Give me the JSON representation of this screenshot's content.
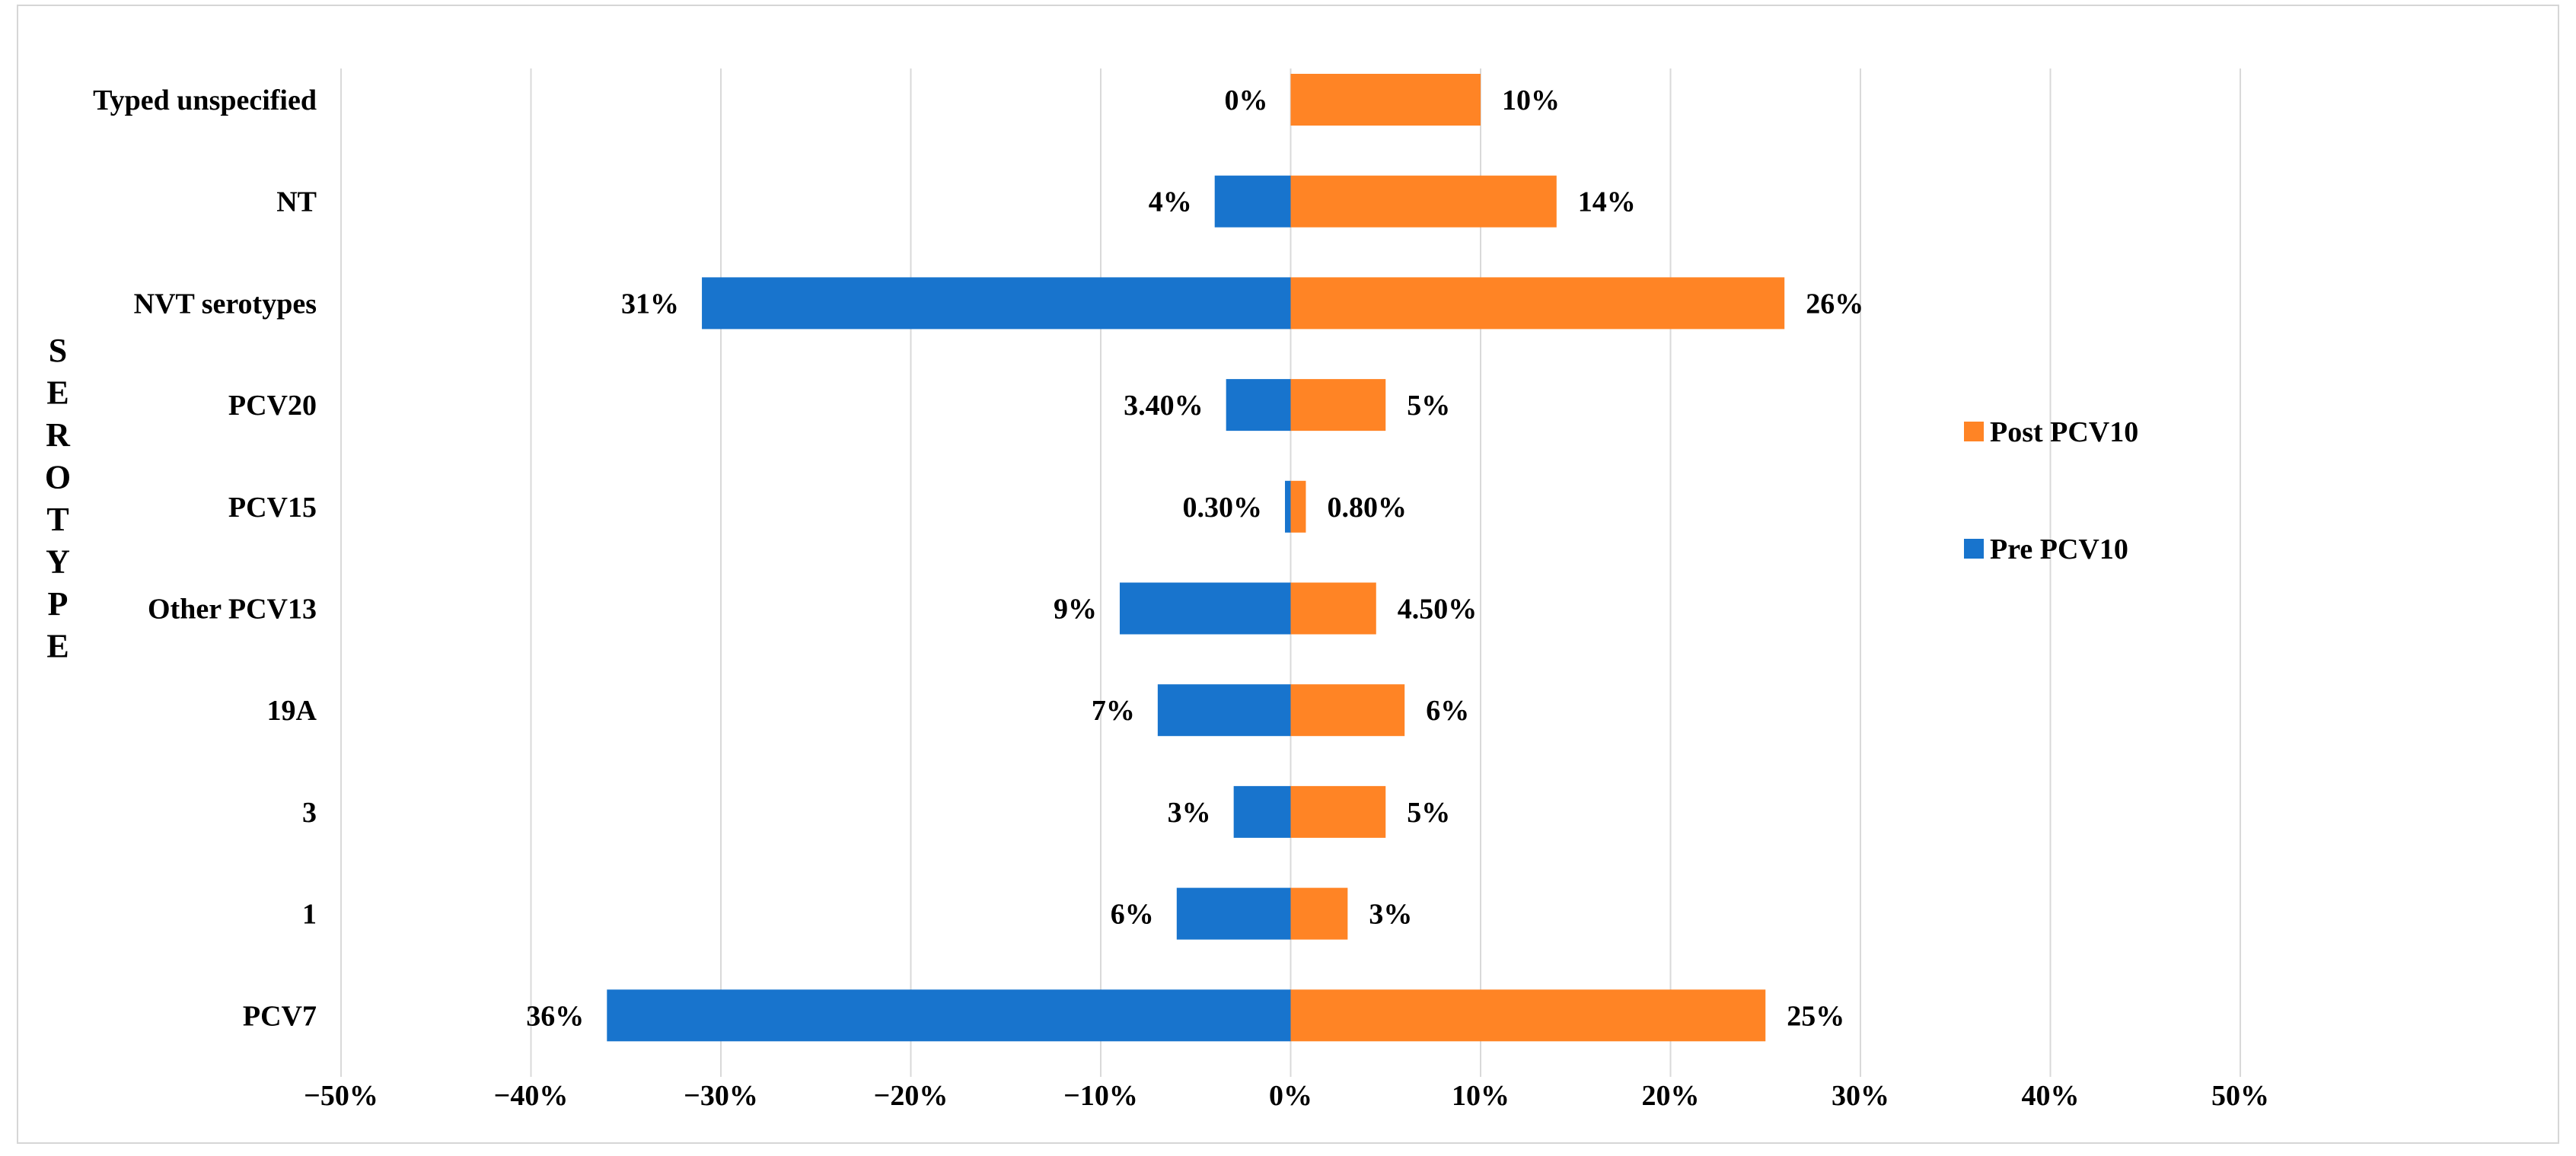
{
  "chart_data": {
    "type": "bar",
    "orientation": "horizontal",
    "categories": [
      "Typed unspecified",
      "NT",
      "NVT serotypes",
      "PCV20",
      "PCV15",
      "Other PCV13",
      "19A",
      "3",
      "1",
      "PCV7"
    ],
    "series": [
      {
        "name": "Pre PCV10",
        "color": "#1874cd",
        "values": [
          0,
          -4,
          -31,
          -3.4,
          -0.3,
          -9,
          -7,
          -3,
          -6,
          -36
        ],
        "labels": [
          "0%",
          "4%",
          "31%",
          "3.40%",
          "0.30%",
          "9%",
          "7%",
          "3%",
          "6%",
          "36%"
        ]
      },
      {
        "name": "Post PCV10",
        "color": "#ff8425",
        "values": [
          10,
          14,
          26,
          5,
          0.8,
          4.5,
          6,
          5,
          3,
          25
        ],
        "labels": [
          "10%",
          "14%",
          "26%",
          "5%",
          "0.80%",
          "4.50%",
          "6%",
          "5%",
          "3%",
          "25%"
        ]
      }
    ],
    "ylabel": "SEROTYPE",
    "xlim": [
      -50,
      50
    ],
    "xticks": [
      -50,
      -40,
      -30,
      -20,
      -10,
      0,
      10,
      20,
      30,
      40,
      50
    ],
    "xtick_labels": [
      "−50%",
      "−40%",
      "−30%",
      "−20%",
      "−10%",
      "0%",
      "10%",
      "20%",
      "30%",
      "40%",
      "50%"
    ],
    "grid": true,
    "legend_position": "right",
    "legend_order": [
      "Post PCV10",
      "Pre PCV10"
    ]
  }
}
